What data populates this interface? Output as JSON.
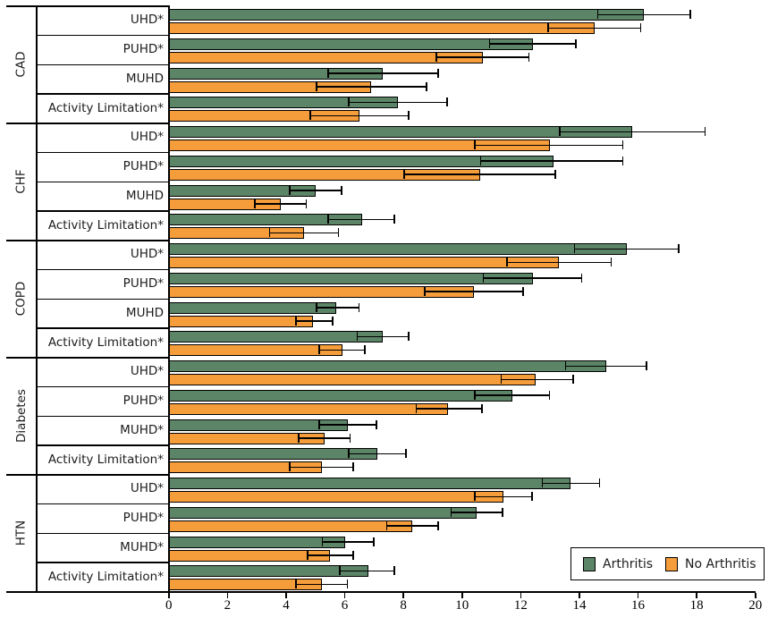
{
  "chart_data": {
    "type": "bar",
    "orientation": "horizontal",
    "title": "",
    "xlabel": "",
    "ylabel": "",
    "xlim": [
      0,
      20
    ],
    "x_ticks": [
      0,
      2,
      4,
      6,
      8,
      10,
      12,
      14,
      16,
      18,
      20
    ],
    "grid": false,
    "error_bars": true,
    "series": [
      {
        "name": "Arthritis",
        "color": "#5C8466"
      },
      {
        "name": "No Arthritis",
        "color": "#F59C3B"
      }
    ],
    "groups": [
      {
        "label": "CAD",
        "rows": [
          {
            "label": "UHD*",
            "values": [
              {
                "value": 16.2,
                "ci": [
                  14.6,
                  17.8
                ]
              },
              {
                "value": 14.5,
                "ci": [
                  12.9,
                  16.1
                ]
              }
            ]
          },
          {
            "label": "PUHD*",
            "values": [
              {
                "value": 12.4,
                "ci": [
                  10.9,
                  13.9
                ]
              },
              {
                "value": 10.7,
                "ci": [
                  9.1,
                  12.3
                ]
              }
            ]
          },
          {
            "label": "MUHD",
            "values": [
              {
                "value": 7.3,
                "ci": [
                  5.4,
                  9.2
                ]
              },
              {
                "value": 6.9,
                "ci": [
                  5.0,
                  8.8
                ]
              }
            ]
          },
          {
            "label": "Activity Limitation*",
            "values": [
              {
                "value": 7.8,
                "ci": [
                  6.1,
                  9.5
                ]
              },
              {
                "value": 6.5,
                "ci": [
                  4.8,
                  8.2
                ]
              }
            ]
          }
        ]
      },
      {
        "label": "CHF",
        "rows": [
          {
            "label": "UHD*",
            "values": [
              {
                "value": 15.8,
                "ci": [
                  13.3,
                  18.3
                ]
              },
              {
                "value": 13.0,
                "ci": [
                  10.4,
                  15.5
                ]
              }
            ]
          },
          {
            "label": "PUHD*",
            "values": [
              {
                "value": 13.1,
                "ci": [
                  10.6,
                  15.5
                ]
              },
              {
                "value": 10.6,
                "ci": [
                  8.0,
                  13.2
                ]
              }
            ]
          },
          {
            "label": "MUHD",
            "values": [
              {
                "value": 5.0,
                "ci": [
                  4.1,
                  5.9
                ]
              },
              {
                "value": 3.8,
                "ci": [
                  2.9,
                  4.7
                ]
              }
            ]
          },
          {
            "label": "Activity Limitation*",
            "values": [
              {
                "value": 6.6,
                "ci": [
                  5.4,
                  7.7
                ]
              },
              {
                "value": 4.6,
                "ci": [
                  3.4,
                  5.8
                ]
              }
            ]
          }
        ]
      },
      {
        "label": "COPD",
        "rows": [
          {
            "label": "UHD*",
            "values": [
              {
                "value": 15.6,
                "ci": [
                  13.8,
                  17.4
                ]
              },
              {
                "value": 13.3,
                "ci": [
                  11.5,
                  15.1
                ]
              }
            ]
          },
          {
            "label": "PUHD*",
            "values": [
              {
                "value": 12.4,
                "ci": [
                  10.7,
                  14.1
                ]
              },
              {
                "value": 10.4,
                "ci": [
                  8.7,
                  12.1
                ]
              }
            ]
          },
          {
            "label": "MUHD",
            "values": [
              {
                "value": 5.7,
                "ci": [
                  5.0,
                  6.5
                ]
              },
              {
                "value": 4.9,
                "ci": [
                  4.3,
                  5.6
                ]
              }
            ]
          },
          {
            "label": "Activity Limitation*",
            "values": [
              {
                "value": 7.3,
                "ci": [
                  6.4,
                  8.2
                ]
              },
              {
                "value": 5.9,
                "ci": [
                  5.1,
                  6.7
                ]
              }
            ]
          }
        ]
      },
      {
        "label": "Diabetes",
        "rows": [
          {
            "label": "UHD*",
            "values": [
              {
                "value": 14.9,
                "ci": [
                  13.5,
                  16.3
                ]
              },
              {
                "value": 12.5,
                "ci": [
                  11.3,
                  13.8
                ]
              }
            ]
          },
          {
            "label": "PUHD*",
            "values": [
              {
                "value": 11.7,
                "ci": [
                  10.4,
                  13.0
                ]
              },
              {
                "value": 9.5,
                "ci": [
                  8.4,
                  10.7
                ]
              }
            ]
          },
          {
            "label": "MUHD*",
            "values": [
              {
                "value": 6.1,
                "ci": [
                  5.1,
                  7.1
                ]
              },
              {
                "value": 5.3,
                "ci": [
                  4.4,
                  6.2
                ]
              }
            ]
          },
          {
            "label": "Activity Limitation*",
            "values": [
              {
                "value": 7.1,
                "ci": [
                  6.1,
                  8.1
                ]
              },
              {
                "value": 5.2,
                "ci": [
                  4.1,
                  6.3
                ]
              }
            ]
          }
        ]
      },
      {
        "label": "HTN",
        "rows": [
          {
            "label": "UHD*",
            "values": [
              {
                "value": 13.7,
                "ci": [
                  12.7,
                  14.7
                ]
              },
              {
                "value": 11.4,
                "ci": [
                  10.4,
                  12.4
                ]
              }
            ]
          },
          {
            "label": "PUHD*",
            "values": [
              {
                "value": 10.5,
                "ci": [
                  9.6,
                  11.4
                ]
              },
              {
                "value": 8.3,
                "ci": [
                  7.4,
                  9.2
                ]
              }
            ]
          },
          {
            "label": "MUHD*",
            "values": [
              {
                "value": 6.0,
                "ci": [
                  5.2,
                  7.0
                ]
              },
              {
                "value": 5.5,
                "ci": [
                  4.7,
                  6.3
                ]
              }
            ]
          },
          {
            "label": "Activity Limitation*",
            "values": [
              {
                "value": 6.8,
                "ci": [
                  5.8,
                  7.7
                ]
              },
              {
                "value": 5.2,
                "ci": [
                  4.3,
                  6.1
                ]
              }
            ]
          }
        ]
      }
    ],
    "legend": {
      "position": "bottom-right",
      "entries": [
        "Arthritis",
        "No Arthritis"
      ]
    }
  }
}
